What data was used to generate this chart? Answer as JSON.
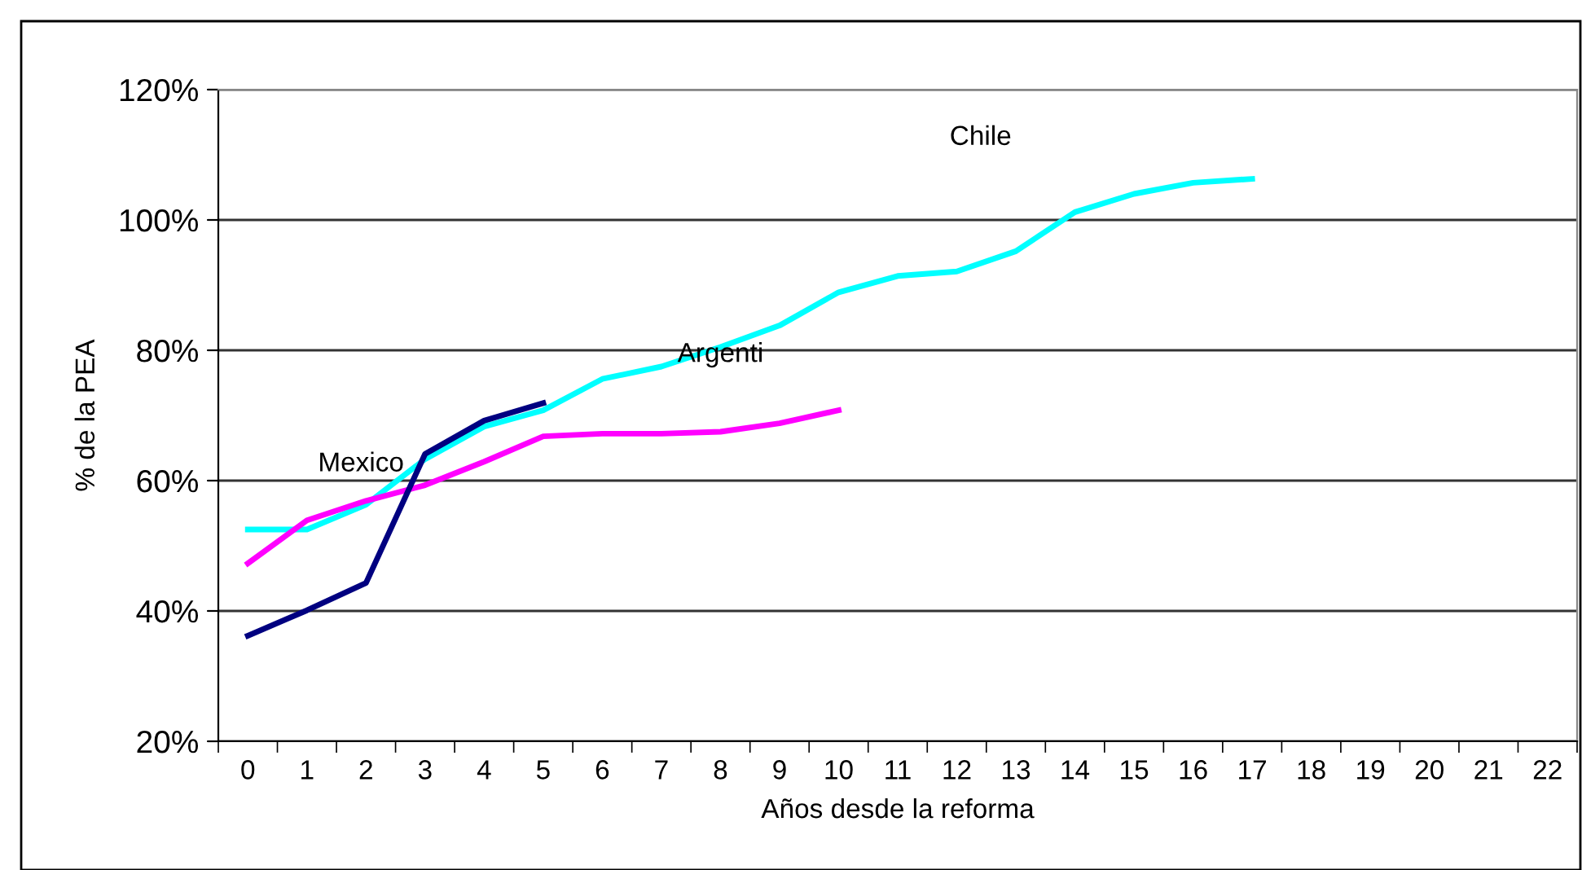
{
  "chart_data": {
    "type": "line",
    "xlabel": "Años desde la reforma",
    "ylabel": "% de la PEA",
    "categories": [
      "0",
      "1",
      "2",
      "3",
      "4",
      "5",
      "6",
      "7",
      "8",
      "9",
      "10",
      "11",
      "12",
      "13",
      "14",
      "15",
      "16",
      "17",
      "18",
      "19",
      "20",
      "21",
      "22"
    ],
    "series": [
      {
        "color": "#00ffff",
        "values": [
          52.5,
          52.5,
          56.3,
          63.3,
          68.3,
          70.8,
          75.6,
          77.5,
          80.5,
          83.8,
          88.9,
          91.4,
          92.1,
          95.2,
          101.2,
          104,
          105.7,
          106.3,
          null,
          null,
          null,
          null,
          null
        ]
      },
      {
        "color": "#ff00ff",
        "values": [
          47.3,
          53.9,
          56.9,
          59.3,
          62.9,
          66.8,
          67.2,
          67.2,
          67.5,
          68.8,
          70.8,
          null,
          null,
          null,
          null,
          null,
          null,
          null,
          null,
          null,
          null,
          null,
          null
        ]
      },
      {
        "color": "#000080",
        "values": [
          36.2,
          40.1,
          44.3,
          64.1,
          69.2,
          71.9,
          null,
          null,
          null,
          null,
          null,
          null,
          null,
          null,
          null,
          null,
          null,
          null,
          null,
          null,
          null,
          null,
          null
        ]
      }
    ],
    "ylim": [
      20,
      120
    ],
    "yticks": [
      {
        "value": 20,
        "label": "20%"
      },
      {
        "value": 40,
        "label": "40%"
      },
      {
        "value": 60,
        "label": "60%"
      },
      {
        "value": 80,
        "label": "80%"
      },
      {
        "value": 100,
        "label": "100%"
      },
      {
        "value": 120,
        "label": "120%"
      }
    ],
    "grid": "y",
    "legend": false,
    "marker": "none",
    "line_style": "solid",
    "annotations": [
      "Chile",
      {
        "text": "Argenti",
        "x": "8",
        "y": 79.3
      },
      "Mexico"
    ]
  }
}
